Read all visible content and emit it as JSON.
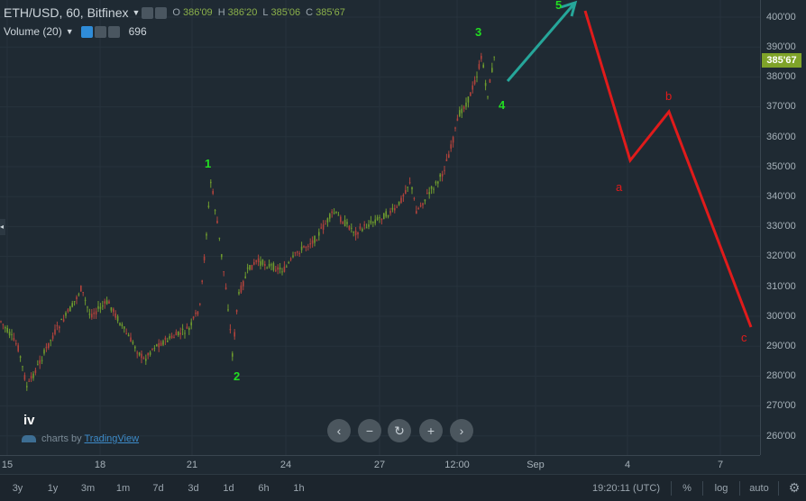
{
  "header": {
    "symbol": "ETH/USD, 60, Bitfinex",
    "ohlc": [
      {
        "k": "O",
        "v": "386'09"
      },
      {
        "k": "H",
        "v": "386'20"
      },
      {
        "k": "L",
        "v": "385'06"
      },
      {
        "k": "C",
        "v": "385'67"
      }
    ],
    "volume_label": "Volume (20)",
    "volume_value": "696"
  },
  "price_axis": {
    "labels": [
      "400'00",
      "390'00",
      "380'00",
      "370'00",
      "360'00",
      "350'00",
      "340'00",
      "330'00",
      "320'00",
      "310'00",
      "300'00",
      "290'00",
      "280'00",
      "270'00",
      "260'00"
    ],
    "current_price": "385'67",
    "current_price_color": "#7fa329"
  },
  "time_axis": {
    "labels": [
      "15",
      "18",
      "21",
      "24",
      "27",
      "12:00",
      "Sep",
      "4",
      "7"
    ]
  },
  "wave_labels": {
    "w1": "1",
    "w2": "2",
    "w3": "3",
    "w4": "4",
    "w5": "5",
    "a": "a",
    "b": "b",
    "c": "c",
    "iv": "iv"
  },
  "watermark": {
    "prefix": "charts by ",
    "brand": "TradingView"
  },
  "nav_buttons": [
    "‹",
    "−",
    "↻",
    "+",
    "›"
  ],
  "bottom_bar": {
    "timeframes": [
      "3y",
      "1y",
      "3m",
      "1m",
      "7d",
      "3d",
      "1d",
      "6h",
      "1h"
    ],
    "time": "19:20:11 (UTC)",
    "percent": "%",
    "log": "log",
    "auto": "auto"
  },
  "colors": {
    "wave_green": "#22dd22",
    "correction_red": "#e01b1b",
    "arrow_teal": "#26a69a"
  }
}
